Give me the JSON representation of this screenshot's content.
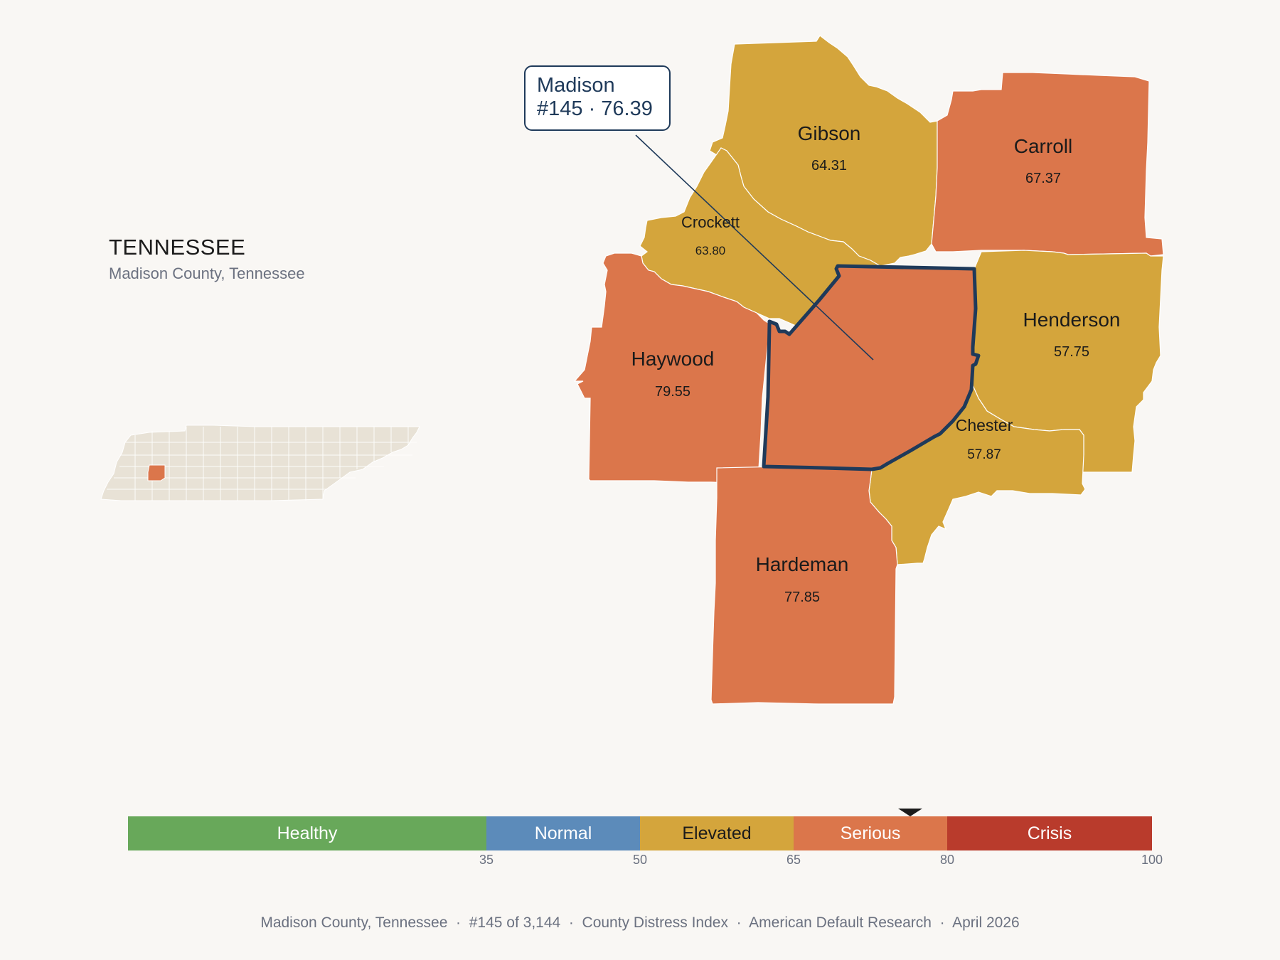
{
  "state": {
    "title": "TENNESSEE",
    "subtitle": "Madison County, Tennessee"
  },
  "callout": {
    "line1": "Madison",
    "line2": "#145 · 76.39"
  },
  "colors": {
    "elevated": "#d4a53c",
    "serious": "#db764b",
    "highlight_outline": "#1f3a5a",
    "inset_fill": "#e8e2d6"
  },
  "counties": [
    {
      "name": "Gibson",
      "value": "64.31",
      "category": "Elevated"
    },
    {
      "name": "Carroll",
      "value": "67.37",
      "category": "Serious"
    },
    {
      "name": "Crockett",
      "value": "63.80",
      "category": "Elevated"
    },
    {
      "name": "Madison",
      "value": "76.39",
      "category": "Serious",
      "highlighted": true
    },
    {
      "name": "Henderson",
      "value": "57.75",
      "category": "Elevated"
    },
    {
      "name": "Haywood",
      "value": "79.55",
      "category": "Serious"
    },
    {
      "name": "Chester",
      "value": "57.87",
      "category": "Elevated"
    },
    {
      "name": "Hardeman",
      "value": "77.85",
      "category": "Serious"
    }
  ],
  "scale": {
    "segments": [
      {
        "label": "Healthy",
        "from": 0,
        "to": 35,
        "color": "#68a85a"
      },
      {
        "label": "Normal",
        "from": 35,
        "to": 50,
        "color": "#5c8bba"
      },
      {
        "label": "Elevated",
        "from": 50,
        "to": 65,
        "color": "#d4a53c"
      },
      {
        "label": "Serious",
        "from": 65,
        "to": 80,
        "color": "#db764b"
      },
      {
        "label": "Crisis",
        "from": 80,
        "to": 100,
        "color": "#b93b2c"
      }
    ],
    "ticks": [
      "35",
      "50",
      "65",
      "80",
      "100"
    ],
    "marker_value": 76.39
  },
  "footer": {
    "county": "Madison County, Tennessee",
    "rank": "#145 of 3,144",
    "index": "County Distress Index",
    "source": "American Default Research",
    "date": "April 2026"
  }
}
